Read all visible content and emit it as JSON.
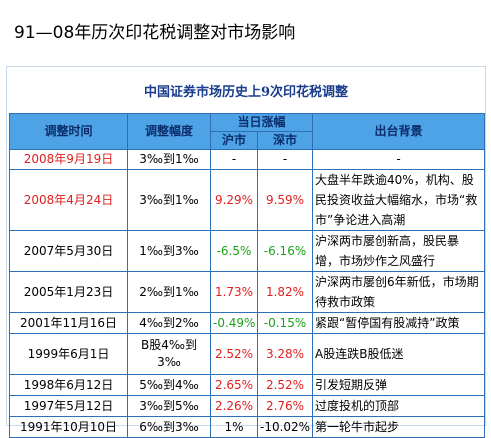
{
  "title": "91—08年历次印花税调整对市场影响",
  "table": {
    "caption": "中国证券市场历史上9次印花税调整",
    "header": {
      "date": "调整时间",
      "adjust": "调整幅度",
      "change": "当日涨幅",
      "sh": "沪市",
      "sz": "深市",
      "background": "出台背景"
    },
    "rows": [
      [
        "2008年9月19日",
        "3‰到1‰",
        "-",
        "-",
        "-"
      ],
      [
        "2008年4月24日",
        "3‰到1‰",
        "9.29%",
        "9.59%",
        "大盘半年跌逾40%，机构、股民投资收益大幅缩水，市场“救市”争论进入高潮"
      ],
      [
        "2007年5月30日",
        "1‰到3‰",
        "-6.5%",
        "-6.16%",
        "沪深两市屡创新高，股民暴增，市场炒作之风盛行"
      ],
      [
        "2005年1月23日",
        "2‰到1‰",
        "1.73%",
        "1.82%",
        "沪深两市屡创6年新低，市场期待救市政策"
      ],
      [
        "2001年11月16日",
        "4‰到2‰",
        "-0.49%",
        "-0.15%",
        "紧跟“暂停国有股减持”政策"
      ],
      [
        "1999年6月1日",
        "B股4‰到3‰",
        "2.52%",
        "3.28%",
        "A股连跌B股低迷"
      ],
      [
        "1998年6月12日",
        "5‰到4‰",
        "2.65%",
        "2.52%",
        "引发短期反弹"
      ],
      [
        "1997年5月12日",
        "3‰到5‰",
        "2.26%",
        "2.76%",
        "过度投机的顶部"
      ],
      [
        "1991年10月10日",
        "6‰到3‰",
        "1%",
        "-10.02%",
        "第一轮牛市起步"
      ]
    ]
  }
}
